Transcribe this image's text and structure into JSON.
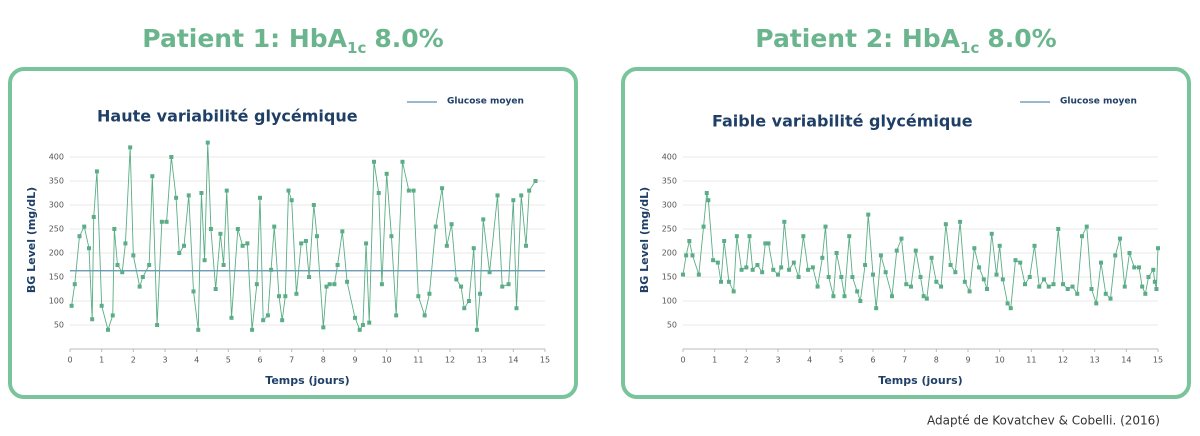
{
  "chart_data": [
    {
      "type": "line",
      "title": "Patient 1: HbA",
      "title_subscript": "1c",
      "title_suffix": "8.0%",
      "subtitle": "Haute variabilité glycémique",
      "x_label": "Temps (jours)",
      "y_label": "BG Level (mg/dL)",
      "legend": "Glucose moyen",
      "legend_color": "#5b8db0",
      "mean": 163,
      "color": "#5aad86",
      "grid": true,
      "xlim": [
        0,
        15
      ],
      "ylim": [
        0,
        450
      ],
      "xticks": [
        0,
        1,
        2,
        3,
        4,
        5,
        6,
        7,
        8,
        9,
        10,
        11,
        12,
        13,
        14,
        15
      ],
      "yticks": [
        50,
        100,
        150,
        200,
        250,
        300,
        350,
        400
      ],
      "x": [
        0.05,
        0.15,
        0.3,
        0.45,
        0.6,
        0.7,
        0.75,
        0.85,
        1.0,
        1.2,
        1.35,
        1.4,
        1.5,
        1.65,
        1.75,
        1.9,
        2.0,
        2.2,
        2.3,
        2.5,
        2.6,
        2.75,
        2.9,
        3.05,
        3.2,
        3.35,
        3.45,
        3.6,
        3.75,
        3.9,
        4.05,
        4.15,
        4.25,
        4.35,
        4.45,
        4.6,
        4.75,
        4.85,
        4.95,
        5.1,
        5.3,
        5.45,
        5.6,
        5.75,
        5.9,
        6.0,
        6.1,
        6.25,
        6.35,
        6.45,
        6.6,
        6.7,
        6.8,
        6.9,
        7.0,
        7.15,
        7.3,
        7.45,
        7.55,
        7.7,
        7.8,
        8.0,
        8.1,
        8.2,
        8.35,
        8.45,
        8.6,
        8.75,
        9.0,
        9.15,
        9.25,
        9.35,
        9.45,
        9.6,
        9.75,
        9.85,
        10.0,
        10.15,
        10.3,
        10.5,
        10.7,
        10.85,
        11.0,
        11.2,
        11.35,
        11.55,
        11.75,
        11.9,
        12.05,
        12.2,
        12.35,
        12.45,
        12.6,
        12.75,
        12.85,
        12.95,
        13.05,
        13.25,
        13.5,
        13.65,
        13.85,
        14.0,
        14.1,
        14.25,
        14.4,
        14.5,
        14.7
      ],
      "values": [
        90,
        135,
        235,
        255,
        210,
        62,
        275,
        370,
        90,
        40,
        70,
        250,
        175,
        160,
        220,
        420,
        195,
        130,
        150,
        175,
        360,
        50,
        265,
        265,
        400,
        315,
        200,
        215,
        320,
        120,
        40,
        325,
        185,
        430,
        250,
        125,
        240,
        175,
        330,
        65,
        250,
        215,
        220,
        40,
        135,
        315,
        60,
        70,
        165,
        255,
        110,
        60,
        110,
        330,
        310,
        115,
        220,
        225,
        150,
        300,
        235,
        45,
        130,
        135,
        135,
        175,
        245,
        140,
        65,
        40,
        50,
        220,
        55,
        390,
        325,
        135,
        365,
        235,
        70,
        390,
        330,
        330,
        110,
        70,
        115,
        255,
        335,
        215,
        260,
        145,
        130,
        85,
        100,
        210,
        40,
        115,
        270,
        160,
        320,
        130,
        135,
        310,
        85,
        320,
        215,
        330,
        350
      ]
    },
    {
      "type": "line",
      "title": "Patient 2: HbA",
      "title_subscript": "1c",
      "title_suffix": "8.0%",
      "subtitle": "Faible variabilité glycémique",
      "x_label": "Temps (jours)",
      "y_label": "BG Level (mg/dL)",
      "legend": "Glucose moyen",
      "legend_color": "#5b8db0",
      "color": "#5aad86",
      "grid": true,
      "xlim": [
        0,
        15
      ],
      "ylim": [
        0,
        450
      ],
      "xticks": [
        0,
        1,
        2,
        3,
        4,
        5,
        6,
        7,
        8,
        9,
        10,
        11,
        12,
        13,
        14,
        15
      ],
      "yticks": [
        50,
        100,
        150,
        200,
        250,
        300,
        350,
        400
      ],
      "x": [
        0,
        0.1,
        0.2,
        0.3,
        0.5,
        0.65,
        0.75,
        0.8,
        0.95,
        1.1,
        1.2,
        1.3,
        1.45,
        1.6,
        1.7,
        1.85,
        2.0,
        2.1,
        2.2,
        2.35,
        2.5,
        2.6,
        2.7,
        2.85,
        3.0,
        3.1,
        3.2,
        3.35,
        3.5,
        3.65,
        3.8,
        3.95,
        4.1,
        4.25,
        4.4,
        4.5,
        4.6,
        4.75,
        4.85,
        5.0,
        5.1,
        5.25,
        5.35,
        5.5,
        5.6,
        5.75,
        5.85,
        6.0,
        6.1,
        6.25,
        6.4,
        6.6,
        6.75,
        6.9,
        7.05,
        7.2,
        7.35,
        7.5,
        7.6,
        7.7,
        7.85,
        8.0,
        8.15,
        8.3,
        8.45,
        8.6,
        8.75,
        8.9,
        9.05,
        9.2,
        9.35,
        9.5,
        9.6,
        9.75,
        9.9,
        10.0,
        10.1,
        10.25,
        10.35,
        10.5,
        10.65,
        10.8,
        10.95,
        11.1,
        11.25,
        11.4,
        11.55,
        11.7,
        11.85,
        12.0,
        12.15,
        12.3,
        12.45,
        12.6,
        12.75,
        12.9,
        13.05,
        13.2,
        13.35,
        13.5,
        13.65,
        13.8,
        13.95,
        14.1,
        14.25,
        14.4,
        14.5,
        14.6,
        14.7,
        14.85,
        14.9,
        14.95,
        15.0
      ],
      "values": [
        155,
        195,
        225,
        195,
        155,
        255,
        325,
        310,
        185,
        180,
        140,
        225,
        140,
        120,
        235,
        165,
        170,
        235,
        165,
        175,
        160,
        220,
        220,
        165,
        155,
        170,
        265,
        165,
        180,
        150,
        235,
        165,
        170,
        130,
        190,
        255,
        150,
        110,
        200,
        150,
        110,
        235,
        150,
        120,
        100,
        175,
        280,
        155,
        85,
        195,
        160,
        110,
        205,
        230,
        135,
        130,
        205,
        150,
        110,
        105,
        190,
        140,
        130,
        260,
        175,
        160,
        265,
        140,
        120,
        210,
        170,
        145,
        125,
        240,
        155,
        215,
        145,
        95,
        85,
        185,
        180,
        135,
        150,
        215,
        130,
        145,
        130,
        135,
        250,
        135,
        125,
        130,
        115,
        235,
        255,
        125,
        95,
        180,
        115,
        105,
        195,
        230,
        130,
        200,
        170,
        170,
        130,
        115,
        150,
        165,
        140,
        125,
        210
      ]
    }
  ],
  "source": "Adapté de Kovatchev & Cobelli. (2016)"
}
